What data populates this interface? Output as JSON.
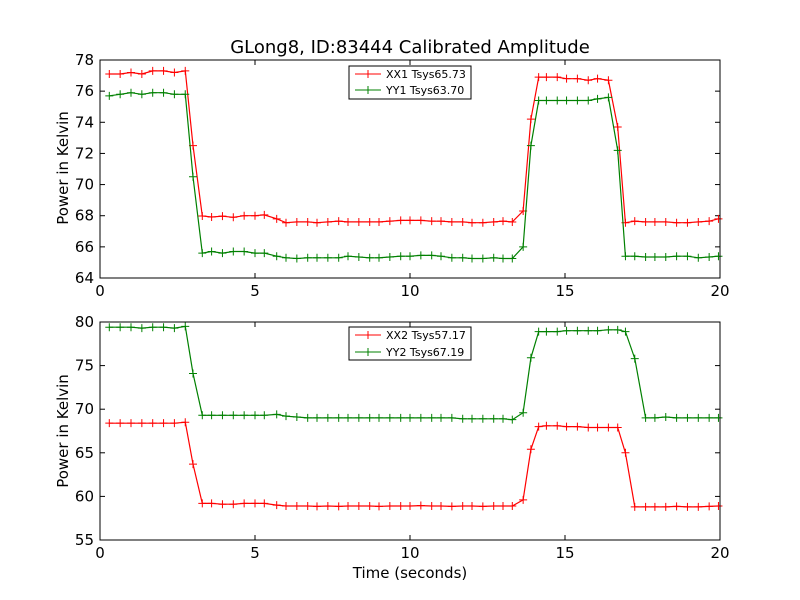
{
  "chart_data": [
    {
      "type": "line",
      "title": "GLong8, ID:83444 Calibrated Amplitude",
      "xlabel": "",
      "ylabel": "Power in Kelvin",
      "xlim": [
        0,
        20
      ],
      "ylim": [
        64,
        78
      ],
      "xticks": [
        "0",
        "5",
        "10",
        "15",
        "20"
      ],
      "yticks": [
        "64",
        "66",
        "68",
        "70",
        "72",
        "74",
        "76",
        "78"
      ],
      "legend_position": "top-center",
      "x": [
        0.3,
        0.65,
        1.0,
        1.35,
        1.7,
        2.05,
        2.4,
        2.75,
        3.0,
        3.3,
        3.6,
        3.95,
        4.3,
        4.65,
        5.0,
        5.3,
        5.7,
        6.0,
        6.35,
        6.7,
        7.0,
        7.35,
        7.7,
        8.0,
        8.35,
        8.7,
        9.0,
        9.35,
        9.7,
        10.0,
        10.35,
        10.7,
        11.0,
        11.35,
        11.7,
        12.0,
        12.35,
        12.7,
        13.0,
        13.3,
        13.65,
        13.9,
        14.15,
        14.4,
        14.75,
        15.05,
        15.4,
        15.75,
        16.05,
        16.4,
        16.7,
        16.95,
        17.25,
        17.6,
        17.9,
        18.25,
        18.6,
        18.95,
        19.3,
        19.65,
        19.95
      ],
      "series": [
        {
          "name": "XX1 Tsys65.73",
          "color": "#ff0000",
          "values": [
            77.1,
            77.1,
            77.2,
            77.1,
            77.3,
            77.3,
            77.2,
            77.3,
            72.5,
            67.98,
            67.92,
            67.97,
            67.9,
            68.0,
            68.0,
            68.05,
            67.8,
            67.55,
            67.6,
            67.6,
            67.55,
            67.6,
            67.65,
            67.6,
            67.6,
            67.6,
            67.6,
            67.65,
            67.7,
            67.7,
            67.7,
            67.65,
            67.65,
            67.6,
            67.6,
            67.55,
            67.55,
            67.6,
            67.65,
            67.6,
            68.3,
            74.2,
            76.9,
            76.9,
            76.9,
            76.8,
            76.8,
            76.7,
            76.8,
            76.7,
            73.7,
            67.55,
            67.65,
            67.6,
            67.6,
            67.6,
            67.55,
            67.55,
            67.6,
            67.65,
            67.8
          ]
        },
        {
          "name": "YY1 Tsys63.70",
          "color": "#008000",
          "values": [
            75.7,
            75.8,
            75.9,
            75.8,
            75.9,
            75.9,
            75.8,
            75.8,
            70.5,
            65.6,
            65.7,
            65.6,
            65.7,
            65.7,
            65.6,
            65.6,
            65.4,
            65.3,
            65.25,
            65.3,
            65.3,
            65.3,
            65.3,
            65.4,
            65.35,
            65.3,
            65.3,
            65.35,
            65.4,
            65.4,
            65.45,
            65.45,
            65.4,
            65.3,
            65.3,
            65.25,
            65.25,
            65.3,
            65.25,
            65.25,
            66.0,
            72.5,
            75.4,
            75.4,
            75.4,
            75.4,
            75.4,
            75.4,
            75.5,
            75.6,
            72.2,
            65.4,
            65.4,
            65.35,
            65.35,
            65.35,
            65.4,
            65.4,
            65.3,
            65.35,
            65.4
          ]
        }
      ]
    },
    {
      "type": "line",
      "title": "",
      "xlabel": "Time (seconds)",
      "ylabel": "Power in Kelvin",
      "xlim": [
        0,
        20
      ],
      "ylim": [
        55,
        80
      ],
      "xticks": [
        "0",
        "5",
        "10",
        "15",
        "20"
      ],
      "yticks": [
        "55",
        "60",
        "65",
        "70",
        "75",
        "80"
      ],
      "legend_position": "top-center",
      "x": [
        0.3,
        0.65,
        1.0,
        1.35,
        1.7,
        2.05,
        2.4,
        2.75,
        3.0,
        3.3,
        3.6,
        3.95,
        4.3,
        4.65,
        5.0,
        5.3,
        5.7,
        6.0,
        6.35,
        6.7,
        7.0,
        7.35,
        7.7,
        8.0,
        8.35,
        8.7,
        9.0,
        9.35,
        9.7,
        10.0,
        10.35,
        10.7,
        11.0,
        11.35,
        11.7,
        12.0,
        12.35,
        12.7,
        13.0,
        13.3,
        13.65,
        13.9,
        14.15,
        14.4,
        14.75,
        15.05,
        15.4,
        15.75,
        16.05,
        16.4,
        16.7,
        16.95,
        17.25,
        17.6,
        17.9,
        18.25,
        18.6,
        18.95,
        19.3,
        19.65,
        19.95
      ],
      "series": [
        {
          "name": "XX2 Tsys57.17",
          "color": "#ff0000",
          "values": [
            68.4,
            68.4,
            68.4,
            68.4,
            68.4,
            68.4,
            68.4,
            68.5,
            63.7,
            59.2,
            59.2,
            59.1,
            59.1,
            59.2,
            59.2,
            59.2,
            59.0,
            58.9,
            58.9,
            58.9,
            58.85,
            58.9,
            58.85,
            58.9,
            58.9,
            58.9,
            58.85,
            58.9,
            58.9,
            58.9,
            58.95,
            58.9,
            58.9,
            58.85,
            58.9,
            58.9,
            58.85,
            58.9,
            58.9,
            58.9,
            59.6,
            65.4,
            68.0,
            68.1,
            68.1,
            68.0,
            68.0,
            67.9,
            67.9,
            67.9,
            67.9,
            65.0,
            58.8,
            58.8,
            58.8,
            58.8,
            58.85,
            58.8,
            58.8,
            58.85,
            58.9
          ]
        },
        {
          "name": "YY2 Tsys67.19",
          "color": "#008000",
          "values": [
            79.4,
            79.4,
            79.4,
            79.3,
            79.4,
            79.4,
            79.3,
            79.5,
            74.1,
            69.3,
            69.3,
            69.3,
            69.3,
            69.3,
            69.3,
            69.3,
            69.4,
            69.2,
            69.1,
            69.0,
            69.0,
            69.0,
            69.0,
            69.0,
            69.0,
            69.0,
            69.0,
            69.0,
            69.0,
            69.0,
            69.0,
            69.0,
            69.0,
            69.0,
            68.9,
            68.9,
            68.9,
            68.9,
            68.9,
            68.8,
            69.6,
            75.9,
            78.9,
            78.9,
            78.9,
            79.0,
            79.0,
            79.0,
            79.0,
            79.1,
            79.1,
            78.9,
            75.8,
            69.0,
            69.0,
            69.1,
            69.0,
            69.0,
            69.0,
            69.0,
            69.0
          ]
        }
      ]
    }
  ]
}
